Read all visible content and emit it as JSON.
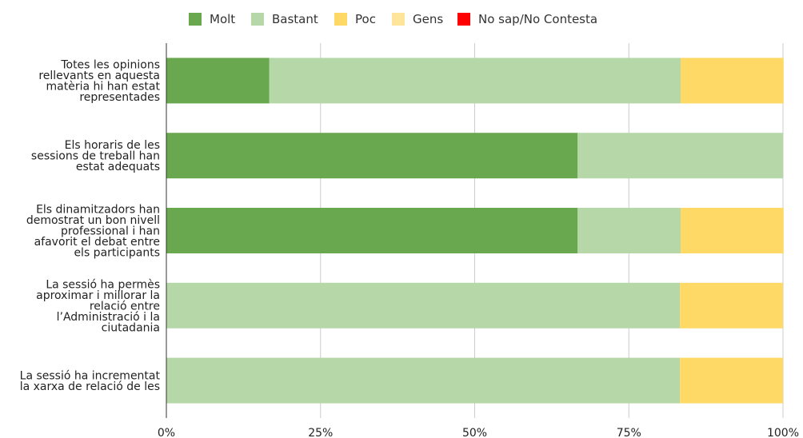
{
  "chart_data": {
    "type": "bar",
    "orientation": "horizontal",
    "stacked": "percent",
    "categories": [
      "Totes les opinions rellevants en aquesta matèria hi han estat representades",
      "Els horaris de les sessions de treball han estat adequats",
      "Els dinamitzadors han demostrat un bon nivell professional i han afavorit el debat entre els participants",
      "La sessió ha permès aproximar i millorar la relació entre l’Administració i la ciutadania",
      "La sessió ha incrementat la xarxa de relació de les"
    ],
    "category_lines": [
      [
        "Totes les opinions",
        "rellevants en aquesta",
        "matèria hi han estat",
        "representades"
      ],
      [
        "Els horaris de les",
        "sessions de treball han",
        "estat adequats"
      ],
      [
        "Els dinamitzadors han",
        "demostrat un bon nivell",
        "professional i han",
        "afavorit el debat entre",
        "els participants"
      ],
      [
        "La sessió ha permès",
        "aproximar i millorar la",
        "relació entre",
        "l’Administració i la",
        "ciutadania"
      ],
      [
        "La sessió ha incrementat",
        "la xarxa de relació de les"
      ]
    ],
    "series": [
      {
        "name": "Molt",
        "color": "#6aa84f",
        "values": [
          16.7,
          66.7,
          66.7,
          0,
          0
        ]
      },
      {
        "name": "Bastant",
        "color": "#b6d7a8",
        "values": [
          66.7,
          33.3,
          16.7,
          83.3,
          83.3
        ]
      },
      {
        "name": "Poc",
        "color": "#ffd966",
        "values": [
          16.7,
          0,
          16.7,
          16.7,
          16.7
        ]
      },
      {
        "name": "Gens",
        "color": "#ffe599",
        "values": [
          0,
          0,
          0,
          0,
          0
        ]
      },
      {
        "name": "No sap/No Contesta",
        "color": "#ff0000",
        "values": [
          0,
          0,
          0,
          0,
          0
        ]
      }
    ],
    "xlim": [
      0,
      100
    ],
    "x_ticks": [
      "0%",
      "25%",
      "50%",
      "75%",
      "100%"
    ],
    "grid": true,
    "legend_position": "top"
  }
}
